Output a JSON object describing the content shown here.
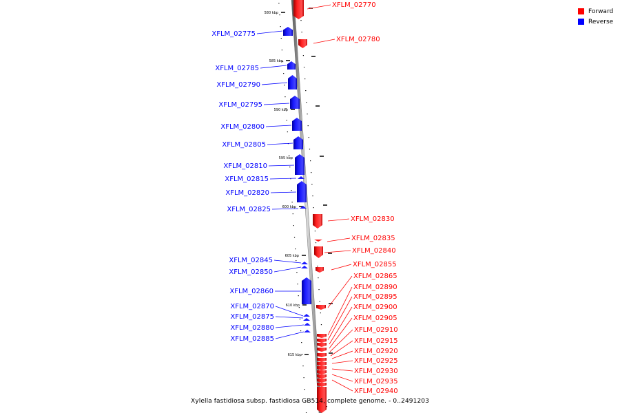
{
  "caption": "Xylella fastidiosa subsp. fastidiosa GB514, complete genome. - 0..2491203",
  "legend": [
    {
      "label": "Forward",
      "color": "#ff0000"
    },
    {
      "label": "Reverse",
      "color": "#0000ff"
    }
  ],
  "ticks": [
    {
      "label": "580 kbp"
    },
    {
      "label": "585 kbp"
    },
    {
      "label": "590 kbp"
    },
    {
      "label": "595 kbp"
    },
    {
      "label": "600 kbp"
    },
    {
      "label": "605 kbp"
    },
    {
      "label": "610 kbp"
    },
    {
      "label": "615 kbp"
    }
  ],
  "reverse_genes": [
    "XFLM_02775",
    "XFLM_02785",
    "XFLM_02790",
    "XFLM_02795",
    "XFLM_02800",
    "XFLM_02805",
    "XFLM_02810",
    "XFLM_02815",
    "XFLM_02820",
    "XFLM_02825",
    "XFLM_02845",
    "XFLM_02850",
    "XFLM_02860",
    "XFLM_02870",
    "XFLM_02875",
    "XFLM_02880",
    "XFLM_02885"
  ],
  "forward_genes": [
    "XFLM_02770",
    "XFLM_02780",
    "XFLM_02830",
    "XFLM_02835",
    "XFLM_02840",
    "XFLM_02855",
    "XFLM_02865",
    "XFLM_02890",
    "XFLM_02895",
    "XFLM_02900",
    "XFLM_02905",
    "XFLM_02910",
    "XFLM_02915",
    "XFLM_02920",
    "XFLM_02925",
    "XFLM_02930",
    "XFLM_02935",
    "XFLM_02940"
  ]
}
